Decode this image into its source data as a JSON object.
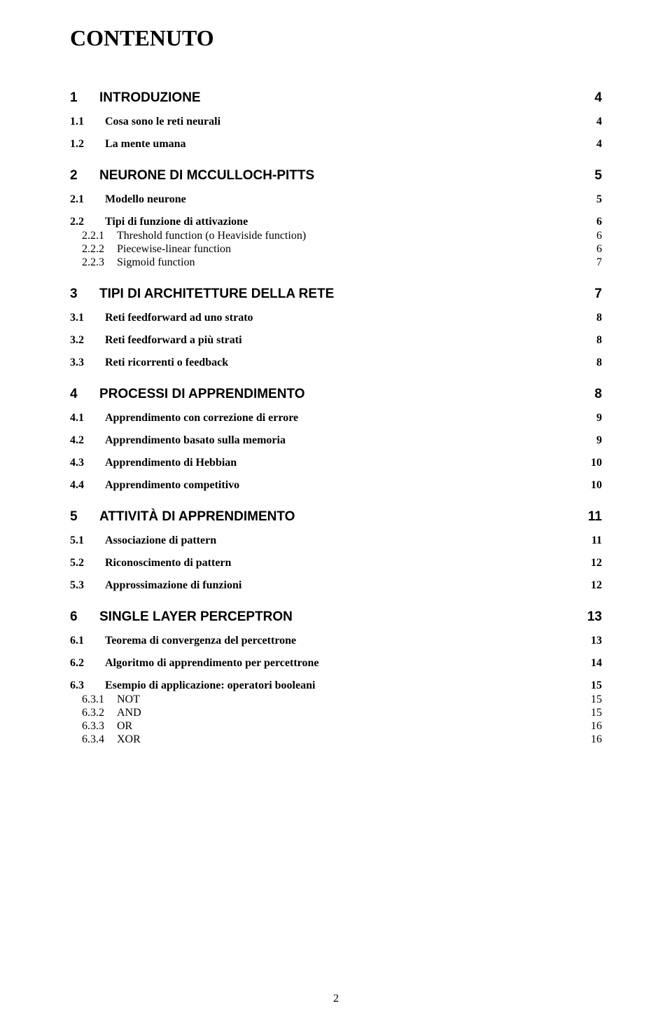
{
  "title": "CONTENUTO",
  "footer_page": "2",
  "typography": {
    "title_fontsize": 32,
    "lvl1_fontsize": 19,
    "lvl1_family": "Arial",
    "lvl1_weight": "bold",
    "lvl2_fontsize": 16,
    "lvl2_family": "Times New Roman",
    "lvl2_weight": "bold",
    "lvl3_fontsize": 16,
    "lvl3_family": "Times New Roman",
    "lvl3_weight": "normal",
    "text_color": "#000000",
    "background_color": "#ffffff"
  },
  "entries": [
    {
      "level": 1,
      "num": "1",
      "label": "INTRODUZIONE",
      "page": "4"
    },
    {
      "level": 2,
      "num": "1.1",
      "label": "Cosa sono le reti neurali",
      "page": "4"
    },
    {
      "level": 2,
      "num": "1.2",
      "label": "La mente umana",
      "page": "4"
    },
    {
      "level": 1,
      "num": "2",
      "label": "NEURONE DI MCCULLOCH-PITTS",
      "page": "5"
    },
    {
      "level": 2,
      "num": "2.1",
      "label": "Modello neurone",
      "page": "5"
    },
    {
      "level": 2,
      "num": "2.2",
      "label": "Tipi di funzione di attivazione",
      "page": "6"
    },
    {
      "level": 3,
      "num": "2.2.1",
      "label": "Threshold function (o Heaviside function)",
      "page": "6"
    },
    {
      "level": 3,
      "num": "2.2.2",
      "label": "Piecewise-linear function",
      "page": "6"
    },
    {
      "level": 3,
      "num": "2.2.3",
      "label": "Sigmoid function",
      "page": "7"
    },
    {
      "level": 1,
      "num": "3",
      "label": "TIPI DI ARCHITETTURE DELLA RETE",
      "page": "7"
    },
    {
      "level": 2,
      "num": "3.1",
      "label": "Reti feedforward ad uno strato",
      "page": "8"
    },
    {
      "level": 2,
      "num": "3.2",
      "label": "Reti feedforward a più strati",
      "page": "8"
    },
    {
      "level": 2,
      "num": "3.3",
      "label": "Reti ricorrenti o feedback",
      "page": "8"
    },
    {
      "level": 1,
      "num": "4",
      "label": "PROCESSI DI APPRENDIMENTO",
      "page": "8"
    },
    {
      "level": 2,
      "num": "4.1",
      "label": "Apprendimento con correzione di errore",
      "page": "9"
    },
    {
      "level": 2,
      "num": "4.2",
      "label": "Apprendimento basato sulla memoria",
      "page": "9"
    },
    {
      "level": 2,
      "num": "4.3",
      "label": "Apprendimento di Hebbian",
      "page": "10"
    },
    {
      "level": 2,
      "num": "4.4",
      "label": "Apprendimento competitivo",
      "page": "10"
    },
    {
      "level": 1,
      "num": "5",
      "label": "ATTIVITÀ DI APPRENDIMENTO",
      "page": "11"
    },
    {
      "level": 2,
      "num": "5.1",
      "label": "Associazione di pattern",
      "page": "11"
    },
    {
      "level": 2,
      "num": "5.2",
      "label": "Riconoscimento di pattern",
      "page": "12"
    },
    {
      "level": 2,
      "num": "5.3",
      "label": "Approssimazione di funzioni",
      "page": "12"
    },
    {
      "level": 1,
      "num": "6",
      "label": "SINGLE LAYER PERCEPTRON",
      "page": "13"
    },
    {
      "level": 2,
      "num": "6.1",
      "label": "Teorema di convergenza del percettrone",
      "page": "13"
    },
    {
      "level": 2,
      "num": "6.2",
      "label": "Algoritmo di apprendimento per percettrone",
      "page": "14"
    },
    {
      "level": 2,
      "num": "6.3",
      "label": "Esempio di applicazione: operatori booleani",
      "page": "15"
    },
    {
      "level": 3,
      "num": "6.3.1",
      "label": "NOT",
      "page": "15"
    },
    {
      "level": 3,
      "num": "6.3.2",
      "label": "AND",
      "page": "15"
    },
    {
      "level": 3,
      "num": "6.3.3",
      "label": "OR",
      "page": "16"
    },
    {
      "level": 3,
      "num": "6.3.4",
      "label": "XOR",
      "page": "16"
    }
  ]
}
